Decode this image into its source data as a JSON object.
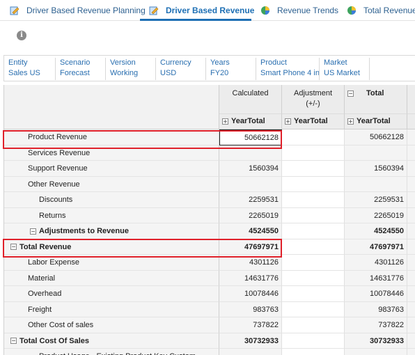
{
  "tabs": [
    {
      "label": "Driver Based Revenue Planning",
      "icon": "form-pencil-icon",
      "active": false
    },
    {
      "label": "Driver Based Revenue",
      "icon": "form-pencil-icon",
      "active": true
    },
    {
      "label": "Revenue Trends",
      "icon": "pie-chart-icon",
      "active": false
    },
    {
      "label": "Total Revenue -",
      "icon": "pie-chart-icon",
      "active": false
    }
  ],
  "info_icon": "i",
  "pov": [
    {
      "dimension": "Entity",
      "member": "Sales US"
    },
    {
      "dimension": "Scenario",
      "member": "Forecast"
    },
    {
      "dimension": "Version",
      "member": "Working"
    },
    {
      "dimension": "Currency",
      "member": "USD"
    },
    {
      "dimension": "Years",
      "member": "FY20"
    },
    {
      "dimension": "Product",
      "member": "Smart Phone 4 in"
    },
    {
      "dimension": "Market",
      "member": "US Market"
    }
  ],
  "columns": [
    {
      "header": "Calculated",
      "header2": "",
      "sub": "YearTotal",
      "expander": ""
    },
    {
      "header": "Adjustment",
      "header2": "(+/-)",
      "sub": "YearTotal",
      "expander": ""
    },
    {
      "header": "Total",
      "header2": "",
      "sub": "YearTotal",
      "expander": "−"
    }
  ],
  "sub_expander": "+",
  "rows": [
    {
      "label": "Product Revenue",
      "indent": 1,
      "bold": false,
      "expander": "",
      "calculated": "50662128",
      "adjustment": "",
      "total": "50662128"
    },
    {
      "label": "Services Revenue",
      "indent": 1,
      "bold": false,
      "expander": "",
      "calculated": "",
      "adjustment": "",
      "total": ""
    },
    {
      "label": "Support Revenue",
      "indent": 1,
      "bold": false,
      "expander": "",
      "calculated": "1560394",
      "adjustment": "",
      "total": "1560394"
    },
    {
      "label": "Other Revenue",
      "indent": 1,
      "bold": false,
      "expander": "",
      "calculated": "",
      "adjustment": "",
      "total": ""
    },
    {
      "label": "Discounts",
      "indent": 2,
      "bold": false,
      "expander": "",
      "calculated": "2259531",
      "adjustment": "",
      "total": "2259531"
    },
    {
      "label": "Returns",
      "indent": 2,
      "bold": false,
      "expander": "",
      "calculated": "2265019",
      "adjustment": "",
      "total": "2265019"
    },
    {
      "label": "Adjustments to Revenue",
      "indent": 2,
      "bold": true,
      "expander": "−",
      "calculated": "4524550",
      "adjustment": "",
      "total": "4524550"
    },
    {
      "label": "Total Revenue",
      "indent": 0,
      "bold": true,
      "expander": "−",
      "calculated": "47697971",
      "adjustment": "",
      "total": "47697971"
    },
    {
      "label": "Labor Expense",
      "indent": 1,
      "bold": false,
      "expander": "",
      "calculated": "4301126",
      "adjustment": "",
      "total": "4301126"
    },
    {
      "label": "Material",
      "indent": 1,
      "bold": false,
      "expander": "",
      "calculated": "14631776",
      "adjustment": "",
      "total": "14631776"
    },
    {
      "label": "Overhead",
      "indent": 1,
      "bold": false,
      "expander": "",
      "calculated": "10078446",
      "adjustment": "",
      "total": "10078446"
    },
    {
      "label": "Freight",
      "indent": 1,
      "bold": false,
      "expander": "",
      "calculated": "983763",
      "adjustment": "",
      "total": "983763"
    },
    {
      "label": "Other Cost of sales",
      "indent": 1,
      "bold": false,
      "expander": "",
      "calculated": "737822",
      "adjustment": "",
      "total": "737822"
    },
    {
      "label": "Total Cost Of Sales",
      "indent": 0,
      "bold": true,
      "expander": "−",
      "calculated": "30732933",
      "adjustment": "",
      "total": "30732933"
    },
    {
      "label": "Product Usage - Existing Product Key Custom",
      "indent": 2,
      "bold": false,
      "expander": "",
      "calculated": "",
      "adjustment": "",
      "total": ""
    }
  ],
  "colors": {
    "accent": "#1d6fb4",
    "highlight": "#e0202a",
    "link": "#2a6fb0"
  }
}
